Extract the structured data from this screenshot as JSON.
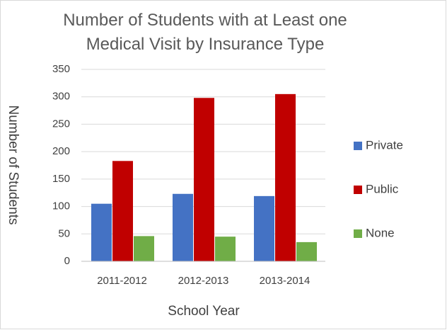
{
  "chart_data": {
    "type": "bar",
    "title": "Number of Students with at Least one Medical Visit by Insurance Type",
    "x_label": "School Year",
    "y_label": "Number of Students",
    "categories": [
      "2011-2012",
      "2012-2013",
      "2013-2014"
    ],
    "series": [
      {
        "name": "Private",
        "color": "#4472c4",
        "values": [
          105,
          123,
          119
        ]
      },
      {
        "name": "Public",
        "color": "#c00000",
        "values": [
          183,
          298,
          305
        ]
      },
      {
        "name": "None",
        "color": "#70ad47",
        "values": [
          46,
          45,
          35
        ]
      }
    ],
    "ylim": [
      0,
      350
    ],
    "yticks": [
      0,
      50,
      100,
      150,
      200,
      250,
      300,
      350
    ],
    "grid": true,
    "legend": "right"
  }
}
